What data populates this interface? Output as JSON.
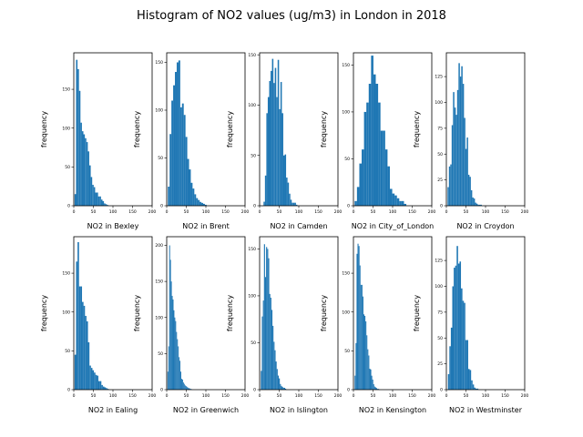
{
  "figure": {
    "title": "Histogram of NO2 values (ug/m3) in London in 2018"
  },
  "chart_data": [
    {
      "type": "bar",
      "xlabel": "NO2 in Bexley",
      "ylabel": "frequency",
      "xlim": [
        0,
        200
      ],
      "ylim": [
        0,
        197
      ],
      "xticks": [
        0,
        50,
        100,
        150,
        200
      ],
      "yticks": [
        0,
        50,
        100,
        150
      ],
      "bin_width": 3.75,
      "x_start": 2,
      "values": [
        15,
        188,
        176,
        148,
        107,
        96,
        92,
        87,
        82,
        70,
        52,
        37,
        27,
        24,
        17,
        17,
        12,
        12,
        8,
        6,
        3,
        2,
        1
      ]
    },
    {
      "type": "bar",
      "xlabel": "NO2 in Brent",
      "ylabel": "frequency",
      "xlim": [
        0,
        200
      ],
      "ylim": [
        0,
        160
      ],
      "xticks": [
        0,
        50,
        100,
        150,
        200
      ],
      "yticks": [
        0,
        50,
        100,
        150
      ],
      "bin_width": 4.5,
      "x_start": 3,
      "values": [
        20,
        75,
        110,
        126,
        140,
        150,
        152,
        103,
        107,
        95,
        72,
        49,
        38,
        24,
        18,
        12,
        8,
        6,
        4,
        3,
        2,
        1
      ]
    },
    {
      "type": "bar",
      "xlabel": "NO2 in Camden",
      "ylabel": "frequency",
      "xlim": [
        0,
        200
      ],
      "ylim": [
        0,
        152
      ],
      "xticks": [
        0,
        50,
        100,
        150,
        200
      ],
      "yticks": [
        0,
        50,
        100,
        150
      ],
      "bin_width": 3.6,
      "x_start": 10,
      "values": [
        4,
        30,
        92,
        108,
        124,
        134,
        146,
        122,
        137,
        108,
        145,
        96,
        123,
        92,
        50,
        51,
        28,
        23,
        12,
        6,
        3,
        3,
        3,
        1
      ]
    },
    {
      "type": "bar",
      "xlabel": "NO2 in City_of_London",
      "ylabel": "frequency",
      "xlim": [
        0,
        200
      ],
      "ylim": [
        0,
        163
      ],
      "xticks": [
        0,
        50,
        100,
        150,
        200
      ],
      "yticks": [
        0,
        50,
        100,
        150
      ],
      "bin_width": 6,
      "x_start": 3,
      "values": [
        5,
        20,
        45,
        60,
        100,
        110,
        130,
        160,
        140,
        130,
        110,
        80,
        80,
        60,
        42,
        18,
        13,
        11,
        8,
        5,
        5,
        2
      ]
    },
    {
      "type": "bar",
      "xlabel": "NO2 in Croydon",
      "ylabel": "frequency",
      "xlim": [
        0,
        200
      ],
      "ylim": [
        0,
        148
      ],
      "xticks": [
        0,
        50,
        100,
        150,
        200
      ],
      "yticks": [
        0,
        25,
        50,
        75,
        100,
        125
      ],
      "bin_width": 3.5,
      "x_start": 3,
      "values": [
        18,
        38,
        40,
        78,
        110,
        95,
        88,
        112,
        138,
        125,
        135,
        118,
        85,
        55,
        66,
        30,
        28,
        15,
        8,
        7,
        3,
        2,
        1,
        1,
        1
      ]
    },
    {
      "type": "bar",
      "xlabel": "NO2 in Ealing",
      "ylabel": "frequency",
      "xlim": [
        0,
        200
      ],
      "ylim": [
        0,
        197
      ],
      "xticks": [
        0,
        50,
        100,
        150,
        200
      ],
      "yticks": [
        0,
        50,
        100,
        150
      ],
      "bin_width": 3.8,
      "x_start": 2,
      "values": [
        45,
        165,
        190,
        133,
        133,
        113,
        108,
        95,
        88,
        61,
        31,
        28,
        25,
        22,
        19,
        18,
        11,
        11,
        6,
        4,
        3,
        2,
        1
      ]
    },
    {
      "type": "bar",
      "xlabel": "NO2 in Greenwich",
      "ylabel": "frequency",
      "xlim": [
        0,
        200
      ],
      "ylim": [
        0,
        212
      ],
      "xticks": [
        0,
        50,
        100,
        150,
        200
      ],
      "yticks": [
        0,
        50,
        100,
        150,
        200
      ],
      "bin_width": 2.2,
      "x_start": 2,
      "values": [
        25,
        60,
        200,
        180,
        150,
        130,
        125,
        110,
        100,
        95,
        80,
        70,
        60,
        45,
        40,
        25,
        15,
        14,
        10,
        8,
        6,
        5,
        4,
        3,
        2,
        2,
        1,
        1
      ]
    },
    {
      "type": "bar",
      "xlabel": "NO2 in Islington",
      "ylabel": "frequency",
      "xlim": [
        0,
        200
      ],
      "ylim": [
        0,
        163
      ],
      "xticks": [
        0,
        50,
        100,
        150,
        200
      ],
      "yticks": [
        0,
        50,
        100,
        150
      ],
      "bin_width": 2.7,
      "x_start": 3,
      "values": [
        20,
        78,
        95,
        155,
        120,
        152,
        150,
        140,
        102,
        98,
        85,
        68,
        51,
        42,
        30,
        22,
        15,
        12,
        6,
        4,
        3,
        2,
        2,
        1
      ]
    },
    {
      "type": "bar",
      "xlabel": "NO2 in Kensington",
      "ylabel": "frequency",
      "xlim": [
        0,
        200
      ],
      "ylim": [
        0,
        197
      ],
      "xticks": [
        0,
        50,
        100,
        150,
        200
      ],
      "yticks": [
        0,
        50,
        100,
        150
      ],
      "bin_width": 2.5,
      "x_start": 3,
      "values": [
        18,
        60,
        175,
        188,
        185,
        160,
        135,
        135,
        120,
        97,
        95,
        88,
        70,
        52,
        44,
        27,
        26,
        18,
        13,
        7,
        4,
        3,
        2,
        1,
        1
      ]
    },
    {
      "type": "bar",
      "xlabel": "NO2 in Westminster",
      "ylabel": "frequency",
      "xlim": [
        0,
        200
      ],
      "ylim": [
        0,
        148
      ],
      "xticks": [
        0,
        50,
        100,
        150,
        200
      ],
      "yticks": [
        0,
        25,
        50,
        75,
        100,
        125
      ],
      "bin_width": 3.7,
      "x_start": 4,
      "values": [
        15,
        42,
        60,
        100,
        118,
        120,
        139,
        122,
        124,
        98,
        86,
        84,
        48,
        48,
        20,
        19,
        9,
        5,
        2,
        1,
        1
      ]
    }
  ],
  "colors": {
    "bar": "#1f77b4",
    "axis": "#000000",
    "background": "#ffffff"
  }
}
